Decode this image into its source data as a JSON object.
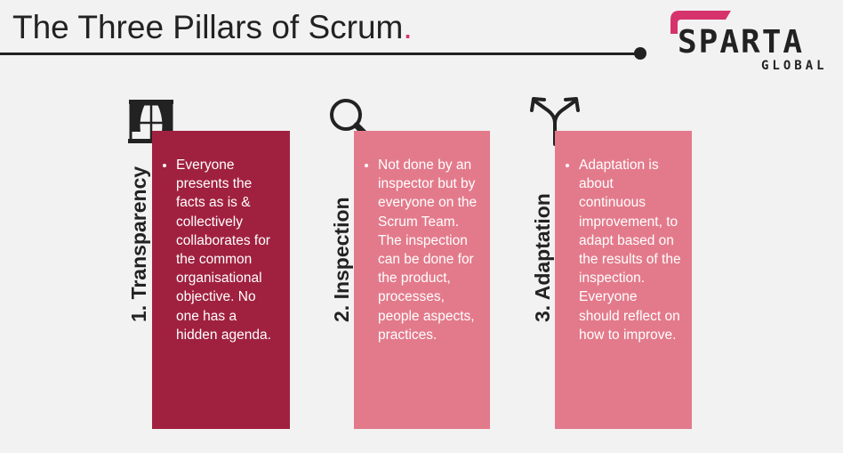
{
  "header": {
    "title": "The Three Pillars of Scrum",
    "title_dot": "."
  },
  "logo": {
    "word": "SPARTA",
    "sub": "GLOBAL",
    "accent_color": "#d6336c"
  },
  "pillars": [
    {
      "label": "1. Transparency",
      "icon": "window-curtains-icon",
      "color": "#a0213f",
      "text": "Everyone presents the facts as is & collectively collaborates for the common organisational objective. No one has a hidden agenda."
    },
    {
      "label": "2. Inspection",
      "icon": "magnifier-icon",
      "color": "#e37a8b",
      "text": "Not done by an inspector but by everyone on the Scrum Team. The inspection can be done for the product, processes, people aspects, practices."
    },
    {
      "label": "3. Adaptation",
      "icon": "split-arrows-icon",
      "color": "#e37a8b",
      "text": "Adaptation is about continuous improvement, to adapt based on the results of the inspection. Everyone should reflect on how to improve."
    }
  ]
}
